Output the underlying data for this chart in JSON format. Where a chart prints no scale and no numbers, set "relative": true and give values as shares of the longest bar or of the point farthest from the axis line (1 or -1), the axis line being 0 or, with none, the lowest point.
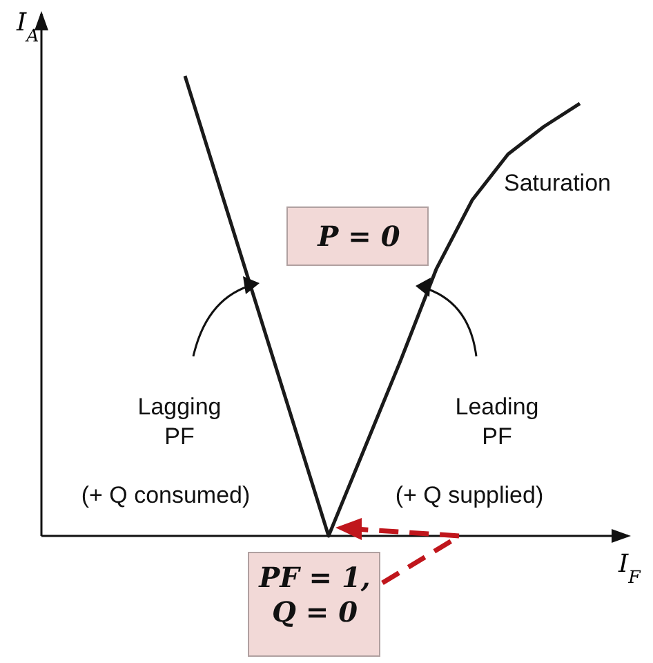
{
  "chart_data": {
    "type": "line",
    "relative": true,
    "xlabel": "I$_{F}$",
    "grid": false,
    "marker": "none",
    "line_style": "solid",
    "categories": [
      null,
      null,
      null,
      null,
      null,
      null,
      null,
      null,
      null,
      null,
      null,
      null
    ],
    "series": [
      {
        "color": "#1a1a1a",
        "values": [
          1.0,
          0.75,
          0.5,
          0.25,
          0,
          0.19,
          0.38,
          0.58,
          0.73,
          0.83,
          0.89,
          0.94
        ]
      }
    ],
    "annotations": [
      "Saturation",
      "P = 0",
      "Lagging PF",
      "Leading PF",
      "(+ Q consumed)",
      "(+ Q supplied)",
      "PF = 1, Q = 0",
      "I$_{A}$"
    ]
  }
}
